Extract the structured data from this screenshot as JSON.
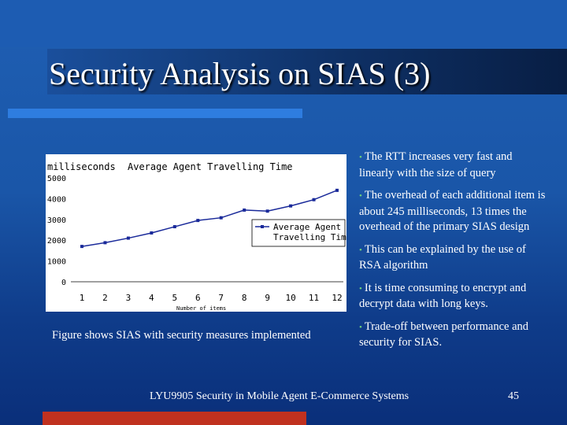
{
  "slide": {
    "title": "Security Analysis on SIAS (3)",
    "caption": "Figure shows SIAS with security measures implemented",
    "bullets": [
      "The RTT increases very fast and linearly with the size of query",
      "The overhead of each additional item is about 245 milliseconds, 13 times the overhead of the primary SIAS design",
      "This can be explained by the use of RSA algorithm",
      "It is time consuming to encrypt and decrypt data with long keys.",
      "Trade-off between performance and security for SIAS."
    ],
    "bullet_marker": "•",
    "footer": "LYU9905 Security in Mobile Agent E-Commerce Systems",
    "page_number": "45",
    "colors": {
      "background": "#1a56a8",
      "accent_bar": "#2e7de0",
      "bottom_accent": "#c0311f",
      "bullet_marker": "#6fd37a"
    }
  },
  "chart_data": {
    "type": "line",
    "title": "Average Agent Travelling Time",
    "ylabel": "milliseconds",
    "xlabel": "Number of items",
    "categories": [
      "1",
      "2",
      "3",
      "4",
      "5",
      "6",
      "7",
      "8",
      "9",
      "10",
      "11",
      "12"
    ],
    "y_ticks": [
      "0",
      "1000",
      "2000",
      "3000",
      "4000",
      "5000"
    ],
    "ylim": [
      0,
      5000
    ],
    "series": [
      {
        "name": "Average Agent Travelling Time",
        "values": [
          1700,
          1880,
          2100,
          2350,
          2650,
          2950,
          3080,
          3450,
          3400,
          3650,
          3950,
          4400
        ]
      }
    ],
    "legend_position": "right",
    "grid": false
  }
}
